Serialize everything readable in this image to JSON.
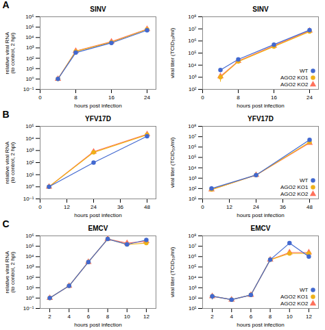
{
  "chart_data": [
    {
      "type": "line",
      "title": "SINV",
      "xlabel": "hours post infection",
      "ylabel": "relative viral RNA\n(to control, 2 hpi)",
      "annotations": [
        "A"
      ],
      "x": [
        4,
        8,
        16,
        24
      ],
      "series": [
        {
          "name": "WT",
          "marker": "circle",
          "values": [
            1.0,
            350,
            3000,
            50000
          ],
          "errors": [
            0.05,
            50,
            500,
            8000
          ]
        },
        {
          "name": "AGO2 KO1",
          "marker": "circle",
          "values": [
            1.0,
            450,
            3500,
            60000
          ],
          "errors": [
            0.05,
            60,
            500,
            9000
          ]
        },
        {
          "name": "AGO2 KO2",
          "marker": "triangle",
          "values": [
            1.0,
            500,
            4000,
            65000
          ],
          "errors": [
            0.05,
            70,
            600,
            10000
          ]
        }
      ],
      "xlim": [
        0,
        26
      ],
      "xticks": [
        0,
        8,
        16,
        24
      ],
      "ylim": [
        0.1,
        1000000
      ],
      "log": "y",
      "yticks": [
        {
          "value": 0.1,
          "label": "10⁻¹"
        },
        {
          "value": 1,
          "label": "10⁰"
        },
        {
          "value": 10,
          "label": "10¹"
        },
        {
          "value": 100,
          "label": "10²"
        },
        {
          "value": 1000,
          "label": "10³"
        },
        {
          "value": 10000,
          "label": "10⁴"
        },
        {
          "value": 100000,
          "label": "10⁵"
        },
        {
          "value": 1000000,
          "label": "10⁶"
        }
      ]
    },
    {
      "type": "line",
      "title": "SINV",
      "xlabel": "hours post infection",
      "ylabel": "viral titer (TCID₅₀/ml)",
      "legend": "lower right",
      "x": [
        4,
        8,
        16,
        24
      ],
      "series": [
        {
          "name": "WT",
          "marker": "circle",
          "values": [
            4000,
            30000,
            500000,
            8000000
          ],
          "errors": [
            1500,
            5000,
            150000,
            2000000
          ]
        },
        {
          "name": "AGO2 KO1",
          "marker": "circle",
          "values": [
            1000,
            20000,
            350000,
            6000000
          ],
          "errors": [
            600,
            7000,
            100000,
            1500000
          ]
        },
        {
          "name": "AGO2 KO2",
          "marker": "triangle",
          "values": [
            1200,
            22000,
            400000,
            7000000
          ],
          "errors": [
            700,
            6000,
            120000,
            1800000
          ]
        }
      ],
      "xlim": [
        0,
        26
      ],
      "xticks": [
        0,
        8,
        16,
        24
      ],
      "ylim": [
        100,
        100000000
      ],
      "log": "y",
      "yticks": [
        {
          "value": 100,
          "label": "10²"
        },
        {
          "value": 1000,
          "label": "10³"
        },
        {
          "value": 10000,
          "label": "10⁴"
        },
        {
          "value": 100000,
          "label": "10⁵"
        },
        {
          "value": 1000000,
          "label": "10⁶"
        },
        {
          "value": 10000000,
          "label": "10⁷"
        },
        {
          "value": 100000000,
          "label": "10⁸"
        }
      ]
    },
    {
      "type": "line",
      "title": "YFV17D",
      "xlabel": "hours post infection",
      "ylabel": "relative viral RNA\n(to control, 2 hpi)",
      "annotations": [
        "B"
      ],
      "x": [
        4,
        24,
        48
      ],
      "series": [
        {
          "name": "WT",
          "marker": "circle",
          "values": [
            1.0,
            100,
            15000
          ],
          "errors": [
            0.05,
            15,
            2000
          ]
        },
        {
          "name": "AGO2 KO1",
          "marker": "circle",
          "values": [
            1.0,
            700,
            20000
          ],
          "errors": [
            0.05,
            200,
            3000
          ]
        },
        {
          "name": "AGO2 KO2",
          "marker": "triangle",
          "values": [
            1.0,
            800,
            22000
          ],
          "errors": [
            0.05,
            250,
            3500
          ]
        }
      ],
      "xlim": [
        0,
        52
      ],
      "xticks": [
        0,
        12,
        24,
        36,
        48
      ],
      "ylim": [
        0.1,
        100000
      ],
      "log": "y",
      "yticks": [
        {
          "value": 0.1,
          "label": "10⁻¹"
        },
        {
          "value": 1,
          "label": "10⁰"
        },
        {
          "value": 10,
          "label": "10¹"
        },
        {
          "value": 100,
          "label": "10²"
        },
        {
          "value": 1000,
          "label": "10³"
        },
        {
          "value": 10000,
          "label": "10⁴"
        },
        {
          "value": 100000,
          "label": "10⁵"
        }
      ]
    },
    {
      "type": "line",
      "title": "YFV17D",
      "xlabel": "hours post infection",
      "ylabel": "viral titer (TCID₅₀/ml)",
      "legend": "lower right",
      "x": [
        4,
        24,
        48
      ],
      "series": [
        {
          "name": "WT",
          "marker": "circle",
          "values": [
            100,
            2000,
            5000000
          ],
          "errors": [
            30,
            500,
            1500000
          ]
        },
        {
          "name": "AGO2 KO1",
          "marker": "circle",
          "values": [
            80,
            2000,
            3000000
          ],
          "errors": [
            20,
            400,
            800000
          ]
        },
        {
          "name": "AGO2 KO2",
          "marker": "triangle",
          "values": [
            80,
            2000,
            2500000
          ],
          "errors": [
            20,
            400,
            700000
          ]
        }
      ],
      "xlim": [
        0,
        52
      ],
      "xticks": [
        0,
        12,
        24,
        36,
        48
      ],
      "ylim": [
        10,
        100000000
      ],
      "log": "y",
      "yticks": [
        {
          "value": 10,
          "label": "10¹"
        },
        {
          "value": 100,
          "label": "10²"
        },
        {
          "value": 1000,
          "label": "10³"
        },
        {
          "value": 10000,
          "label": "10⁴"
        },
        {
          "value": 100000,
          "label": "10⁵"
        },
        {
          "value": 1000000,
          "label": "10⁶"
        },
        {
          "value": 10000000,
          "label": "10⁷"
        },
        {
          "value": 100000000,
          "label": "10⁸"
        }
      ]
    },
    {
      "type": "line",
      "title": "EMCV",
      "xlabel": "hours post infection",
      "ylabel": "relative viral RNA\n(to control, 2 hpi)",
      "annotations": [
        "C"
      ],
      "x": [
        2,
        4,
        6,
        8,
        10,
        12
      ],
      "series": [
        {
          "name": "WT",
          "marker": "circle",
          "values": [
            1.0,
            15,
            3000,
            500000,
            150000,
            400000
          ],
          "errors": [
            0.1,
            3,
            800,
            100000,
            30000,
            80000
          ]
        },
        {
          "name": "AGO2 KO1",
          "marker": "circle",
          "values": [
            1.0,
            15,
            3000,
            500000,
            150000,
            200000
          ],
          "errors": [
            0.1,
            3,
            800,
            100000,
            30000,
            40000
          ]
        },
        {
          "name": "AGO2 KO2",
          "marker": "triangle",
          "values": [
            1.0,
            15,
            3000,
            500000,
            200000,
            300000
          ],
          "errors": [
            0.1,
            3,
            800,
            100000,
            40000,
            60000
          ]
        }
      ],
      "xlim": [
        1,
        13
      ],
      "xticks": [
        2,
        4,
        6,
        8,
        10,
        12
      ],
      "ylim": [
        0.1,
        1000000
      ],
      "log": "y",
      "yticks": [
        {
          "value": 0.1,
          "label": "10⁻¹"
        },
        {
          "value": 1,
          "label": "10⁰"
        },
        {
          "value": 10,
          "label": "10¹"
        },
        {
          "value": 100,
          "label": "10²"
        },
        {
          "value": 1000,
          "label": "10³"
        },
        {
          "value": 10000,
          "label": "10⁴"
        },
        {
          "value": 100000,
          "label": "10⁵"
        },
        {
          "value": 1000000,
          "label": "10⁶"
        }
      ]
    },
    {
      "type": "line",
      "title": "EMCV",
      "xlabel": "hours post infection",
      "ylabel": "viral titer (TCID₅₀/ml)",
      "legend": "lower right",
      "x": [
        2,
        4,
        6,
        8,
        10,
        12
      ],
      "series": [
        {
          "name": "WT",
          "marker": "circle",
          "values": [
            150,
            70,
            200,
            500000,
            20000000,
            1000000
          ],
          "errors": [
            80,
            30,
            80,
            200000,
            8000000,
            400000
          ]
        },
        {
          "name": "AGO2 KO1",
          "marker": "circle",
          "values": [
            150,
            70,
            200,
            500000,
            2000000,
            2000000
          ],
          "errors": [
            80,
            30,
            80,
            200000,
            800000,
            800000
          ]
        },
        {
          "name": "AGO2 KO2",
          "marker": "triangle",
          "values": [
            150,
            70,
            200,
            500000,
            2500000,
            2500000
          ],
          "errors": [
            80,
            30,
            80,
            200000,
            1000000,
            1000000
          ]
        }
      ],
      "xlim": [
        1,
        13
      ],
      "xticks": [
        2,
        4,
        6,
        8,
        10,
        12
      ],
      "ylim": [
        10,
        100000000
      ],
      "log": "y",
      "yticks": [
        {
          "value": 10,
          "label": "10¹"
        },
        {
          "value": 100,
          "label": "10²"
        },
        {
          "value": 1000,
          "label": "10³"
        },
        {
          "value": 10000,
          "label": "10⁴"
        },
        {
          "value": 100000,
          "label": "10⁵"
        },
        {
          "value": 1000000,
          "label": "10⁶"
        },
        {
          "value": 10000000,
          "label": "10⁷"
        },
        {
          "value": 100000000,
          "label": "10⁸"
        }
      ]
    }
  ]
}
